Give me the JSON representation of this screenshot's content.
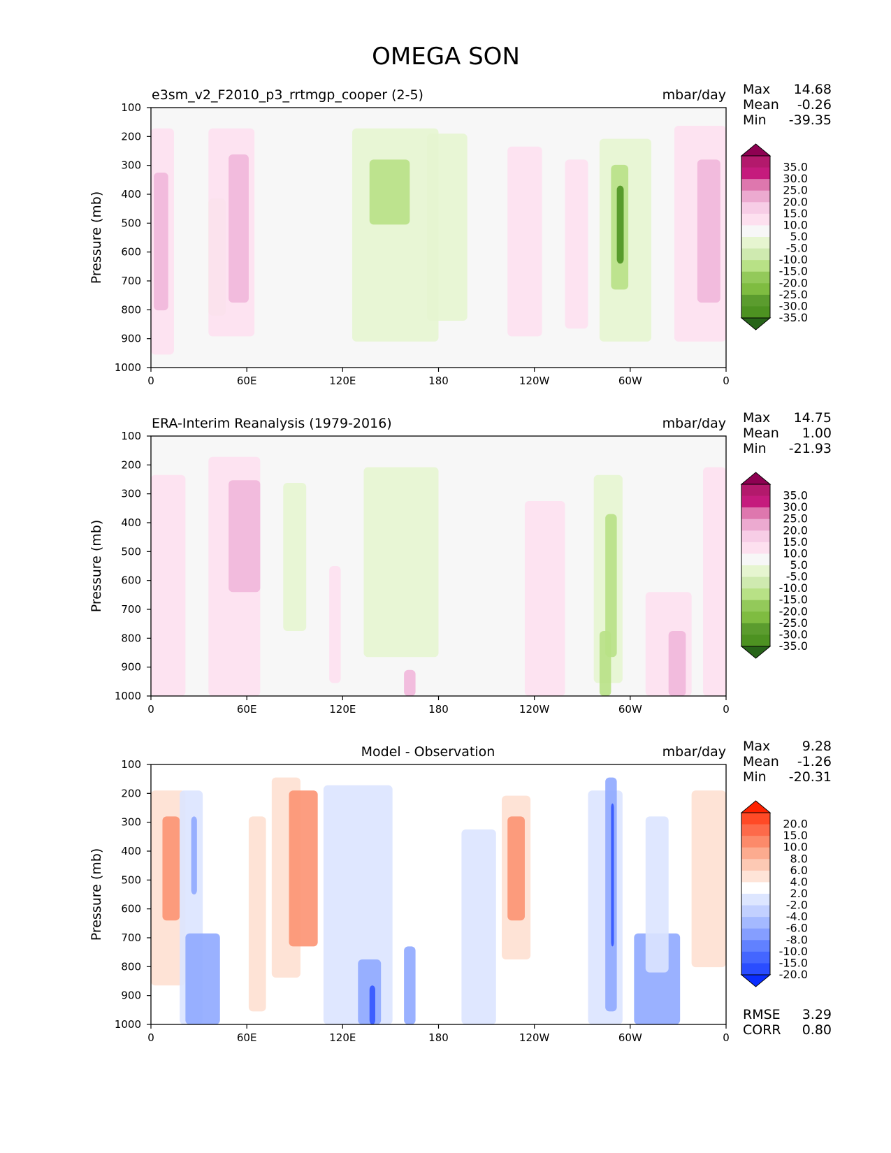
{
  "title": "OMEGA SON",
  "colors": {
    "bg": "#f7f7f7",
    "pink_light": "#fde0ef",
    "pink": "#f1b6da",
    "green_light": "#e6f5d0",
    "green": "#b8e186",
    "green_dark": "#4d9221",
    "diff_bg": "#ffffff",
    "red_light": "#fee0d2",
    "red": "#fc9272",
    "blue_light": "#dbe4ff",
    "blue": "#8fa8ff",
    "blue_dark": "#3355ff"
  },
  "chart_data": [
    {
      "type": "contour",
      "title": "e3sm_v2_F2010_p3_rrtmgp_cooper (2-5)",
      "units": "mbar/day",
      "ylabel": "Pressure (mb)",
      "yticks": [
        "100",
        "200",
        "300",
        "400",
        "500",
        "600",
        "700",
        "800",
        "900",
        "1000"
      ],
      "xticks": [
        "0",
        "60E",
        "120E",
        "180",
        "120W",
        "60W",
        "0"
      ],
      "stats": [
        {
          "label": "Max",
          "value": "14.68"
        },
        {
          "label": "Mean",
          "value": "-0.26"
        },
        {
          "label": "Min",
          "value": "-39.35"
        }
      ],
      "colorbar": {
        "labels": [
          "35.0",
          "30.0",
          "25.0",
          "20.0",
          "15.0",
          "10.0",
          "5.0",
          "-5.0",
          "-10.0",
          "-15.0",
          "-20.0",
          "-25.0",
          "-30.0",
          "-35.0"
        ],
        "colors": [
          "#8e0152",
          "#b3196c",
          "#c51b7d",
          "#de77ae",
          "#ecaad0",
          "#f7cde6",
          "#fde0ef",
          "#f7f7f7",
          "#e6f5d0",
          "#cfeab0",
          "#b8e186",
          "#93c95a",
          "#7fbc41",
          "#5b9c2e",
          "#4d9221",
          "#276419"
        ]
      }
    },
    {
      "type": "contour",
      "title": "ERA-Interim Reanalysis (1979-2016)",
      "units": "mbar/day",
      "ylabel": "Pressure (mb)",
      "yticks": [
        "100",
        "200",
        "300",
        "400",
        "500",
        "600",
        "700",
        "800",
        "900",
        "1000"
      ],
      "xticks": [
        "0",
        "60E",
        "120E",
        "180",
        "120W",
        "60W",
        "0"
      ],
      "stats": [
        {
          "label": "Max",
          "value": "14.75"
        },
        {
          "label": "Mean",
          "value": "1.00"
        },
        {
          "label": "Min",
          "value": "-21.93"
        }
      ],
      "colorbar": {
        "labels": [
          "35.0",
          "30.0",
          "25.0",
          "20.0",
          "15.0",
          "10.0",
          "5.0",
          "-5.0",
          "-10.0",
          "-15.0",
          "-20.0",
          "-25.0",
          "-30.0",
          "-35.0"
        ],
        "colors": [
          "#8e0152",
          "#b3196c",
          "#c51b7d",
          "#de77ae",
          "#ecaad0",
          "#f7cde6",
          "#fde0ef",
          "#f7f7f7",
          "#e6f5d0",
          "#cfeab0",
          "#b8e186",
          "#93c95a",
          "#7fbc41",
          "#5b9c2e",
          "#4d9221",
          "#276419"
        ]
      }
    },
    {
      "type": "contour",
      "title": "Model - Observation",
      "units": "mbar/day",
      "ylabel": "Pressure (mb)",
      "yticks": [
        "100",
        "200",
        "300",
        "400",
        "500",
        "600",
        "700",
        "800",
        "900",
        "1000"
      ],
      "xticks": [
        "0",
        "60E",
        "120E",
        "180",
        "120W",
        "60W",
        "0"
      ],
      "stats": [
        {
          "label": "Max",
          "value": "9.28"
        },
        {
          "label": "Mean",
          "value": "-1.26"
        },
        {
          "label": "Min",
          "value": "-20.31"
        }
      ],
      "extra_stats": [
        {
          "label": "RMSE",
          "value": "3.29"
        },
        {
          "label": "CORR",
          "value": "0.80"
        }
      ],
      "colorbar": {
        "labels": [
          "20.0",
          "15.0",
          "10.0",
          "8.0",
          "6.0",
          "4.0",
          "2.0",
          "-2.0",
          "-4.0",
          "-6.0",
          "-8.0",
          "-10.0",
          "-15.0",
          "-20.0"
        ],
        "colors": [
          "#ff2200",
          "#ff4a26",
          "#fd6a4a",
          "#fc8a6a",
          "#fcab8f",
          "#fdc9b4",
          "#fee4d8",
          "#ffffff",
          "#dde6ff",
          "#c2d0ff",
          "#a4b9ff",
          "#859eff",
          "#6181ff",
          "#4466ff",
          "#2a4dff",
          "#0a2dff"
        ]
      }
    }
  ]
}
